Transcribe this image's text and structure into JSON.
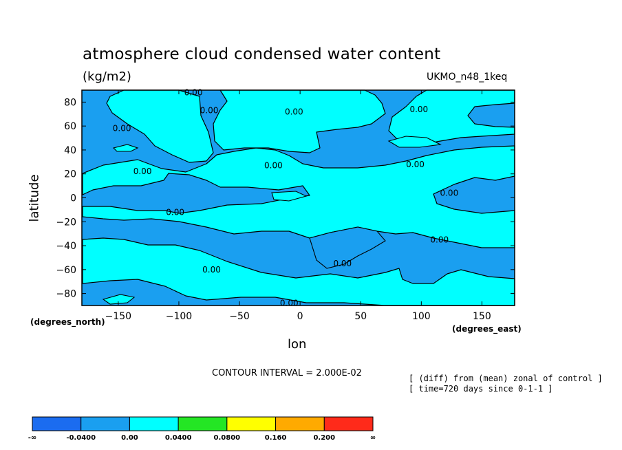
{
  "chart_data": {
    "type": "contour",
    "title": "atmosphere cloud condensed water content",
    "units": "(kg/m2)",
    "model": "UKMO_n48_1keq",
    "xlabel": "lon",
    "ylabel": "latitude",
    "x_units": "(degrees_east)",
    "y_units": "(degrees_north)",
    "xlim": [
      -180,
      177
    ],
    "ylim": [
      -90,
      90
    ],
    "x_ticks": [
      -150,
      -100,
      -50,
      0,
      50,
      100,
      150
    ],
    "y_ticks": [
      80,
      60,
      40,
      20,
      0,
      -20,
      -40,
      -60,
      -80
    ],
    "contour_interval": "CONTOUR INTERVAL = 2.000E-02",
    "notes": [
      "[ (diff) from (mean) zonal of control ]",
      "[ time=720 days since 0-1-1 ]"
    ],
    "contour_labels": [
      {
        "text": "0.00",
        "lon": -88,
        "lat": 88
      },
      {
        "text": "0.00",
        "lon": -75,
        "lat": 73
      },
      {
        "text": "0.00",
        "lon": -5,
        "lat": 72
      },
      {
        "text": "0.00",
        "lon": 98,
        "lat": 74
      },
      {
        "text": "0.00",
        "lon": -147,
        "lat": 58
      },
      {
        "text": "0.00",
        "lon": -130,
        "lat": 22
      },
      {
        "text": "0.00",
        "lon": -22,
        "lat": 27
      },
      {
        "text": "0.00",
        "lon": 95,
        "lat": 28
      },
      {
        "text": "0.00",
        "lon": 123,
        "lat": 4
      },
      {
        "text": "0.00",
        "lon": -103,
        "lat": -12
      },
      {
        "text": "0.00",
        "lon": 115,
        "lat": -35
      },
      {
        "text": "0.00",
        "lon": -73,
        "lat": -60
      },
      {
        "text": "0.00",
        "lon": 35,
        "lat": -55
      },
      {
        "text": "0.00",
        "lon": -9,
        "lat": -88
      }
    ],
    "colorbar": {
      "colors": [
        "#1b6cf0",
        "#1a9ff0",
        "#00ffff",
        "#24e624",
        "#ffff00",
        "#ffaa00",
        "#ff2a1a"
      ],
      "labels": [
        "-∞",
        "-0.0400",
        "0.00",
        "0.0400",
        "0.0800",
        "0.160",
        "0.200",
        "∞"
      ]
    }
  },
  "colors": {
    "negative_fill": "#1a9ff0",
    "positive_fill": "#00ffff"
  }
}
